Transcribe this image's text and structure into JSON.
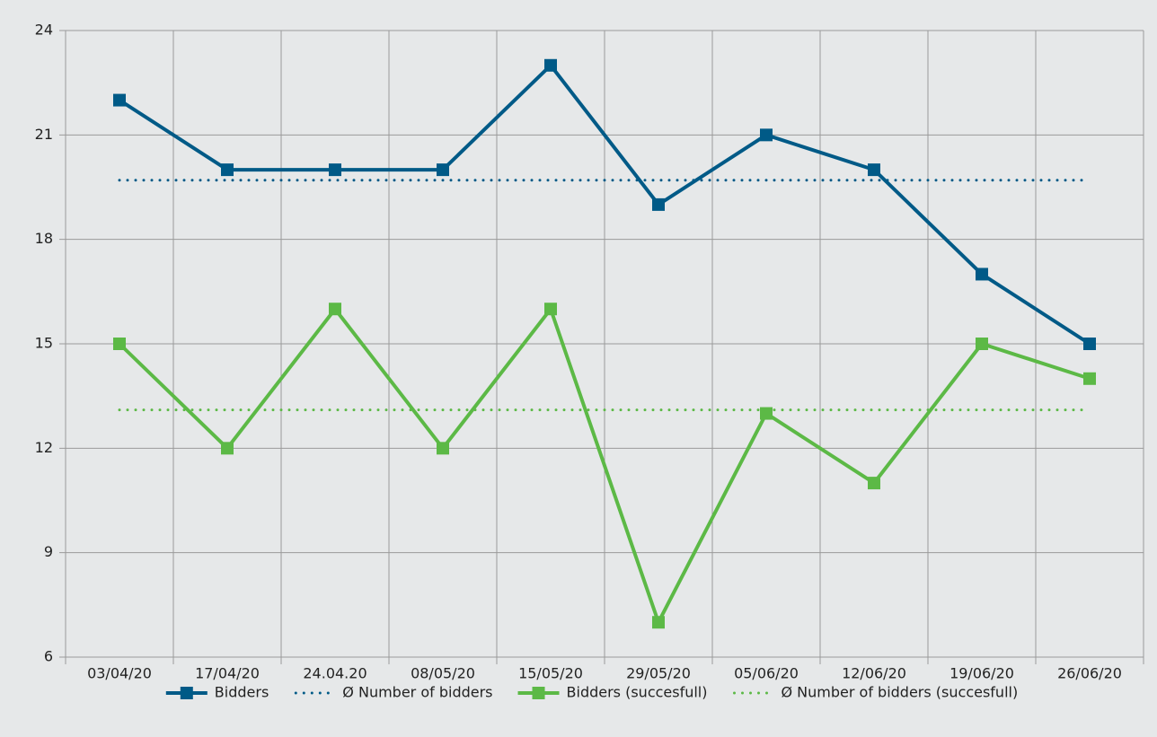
{
  "chart_data": {
    "type": "line",
    "categories": [
      "03/04/20",
      "17/04/20",
      "24.04.20",
      "08/05/20",
      "15/05/20",
      "29/05/20",
      "05/06/20",
      "12/06/20",
      "19/06/20",
      "26/06/20"
    ],
    "series": [
      {
        "name": "Bidders",
        "color": "#005a87",
        "style": "solid",
        "marker": true,
        "values": [
          22,
          20,
          20,
          20,
          23,
          19,
          21,
          20,
          17,
          15
        ]
      },
      {
        "name": "Ø Number of bidders",
        "color": "#005a87",
        "style": "dotted",
        "marker": false,
        "values": [
          19.7,
          19.7,
          19.7,
          19.7,
          19.7,
          19.7,
          19.7,
          19.7,
          19.7,
          19.7
        ]
      },
      {
        "name": "Bidders (succesfull)",
        "color": "#5cb946",
        "style": "solid",
        "marker": true,
        "values": [
          15,
          12,
          16,
          12,
          16,
          7,
          13,
          11,
          15,
          14
        ]
      },
      {
        "name": "Ø Number of bidders (succesfull)",
        "color": "#5cb946",
        "style": "dotted",
        "marker": false,
        "values": [
          13.1,
          13.1,
          13.1,
          13.1,
          13.1,
          13.1,
          13.1,
          13.1,
          13.1,
          13.1
        ]
      }
    ],
    "ylim": [
      6,
      24
    ],
    "yticks": [
      6,
      9,
      12,
      15,
      18,
      21,
      24
    ],
    "grid": true,
    "legend": "bottom"
  }
}
